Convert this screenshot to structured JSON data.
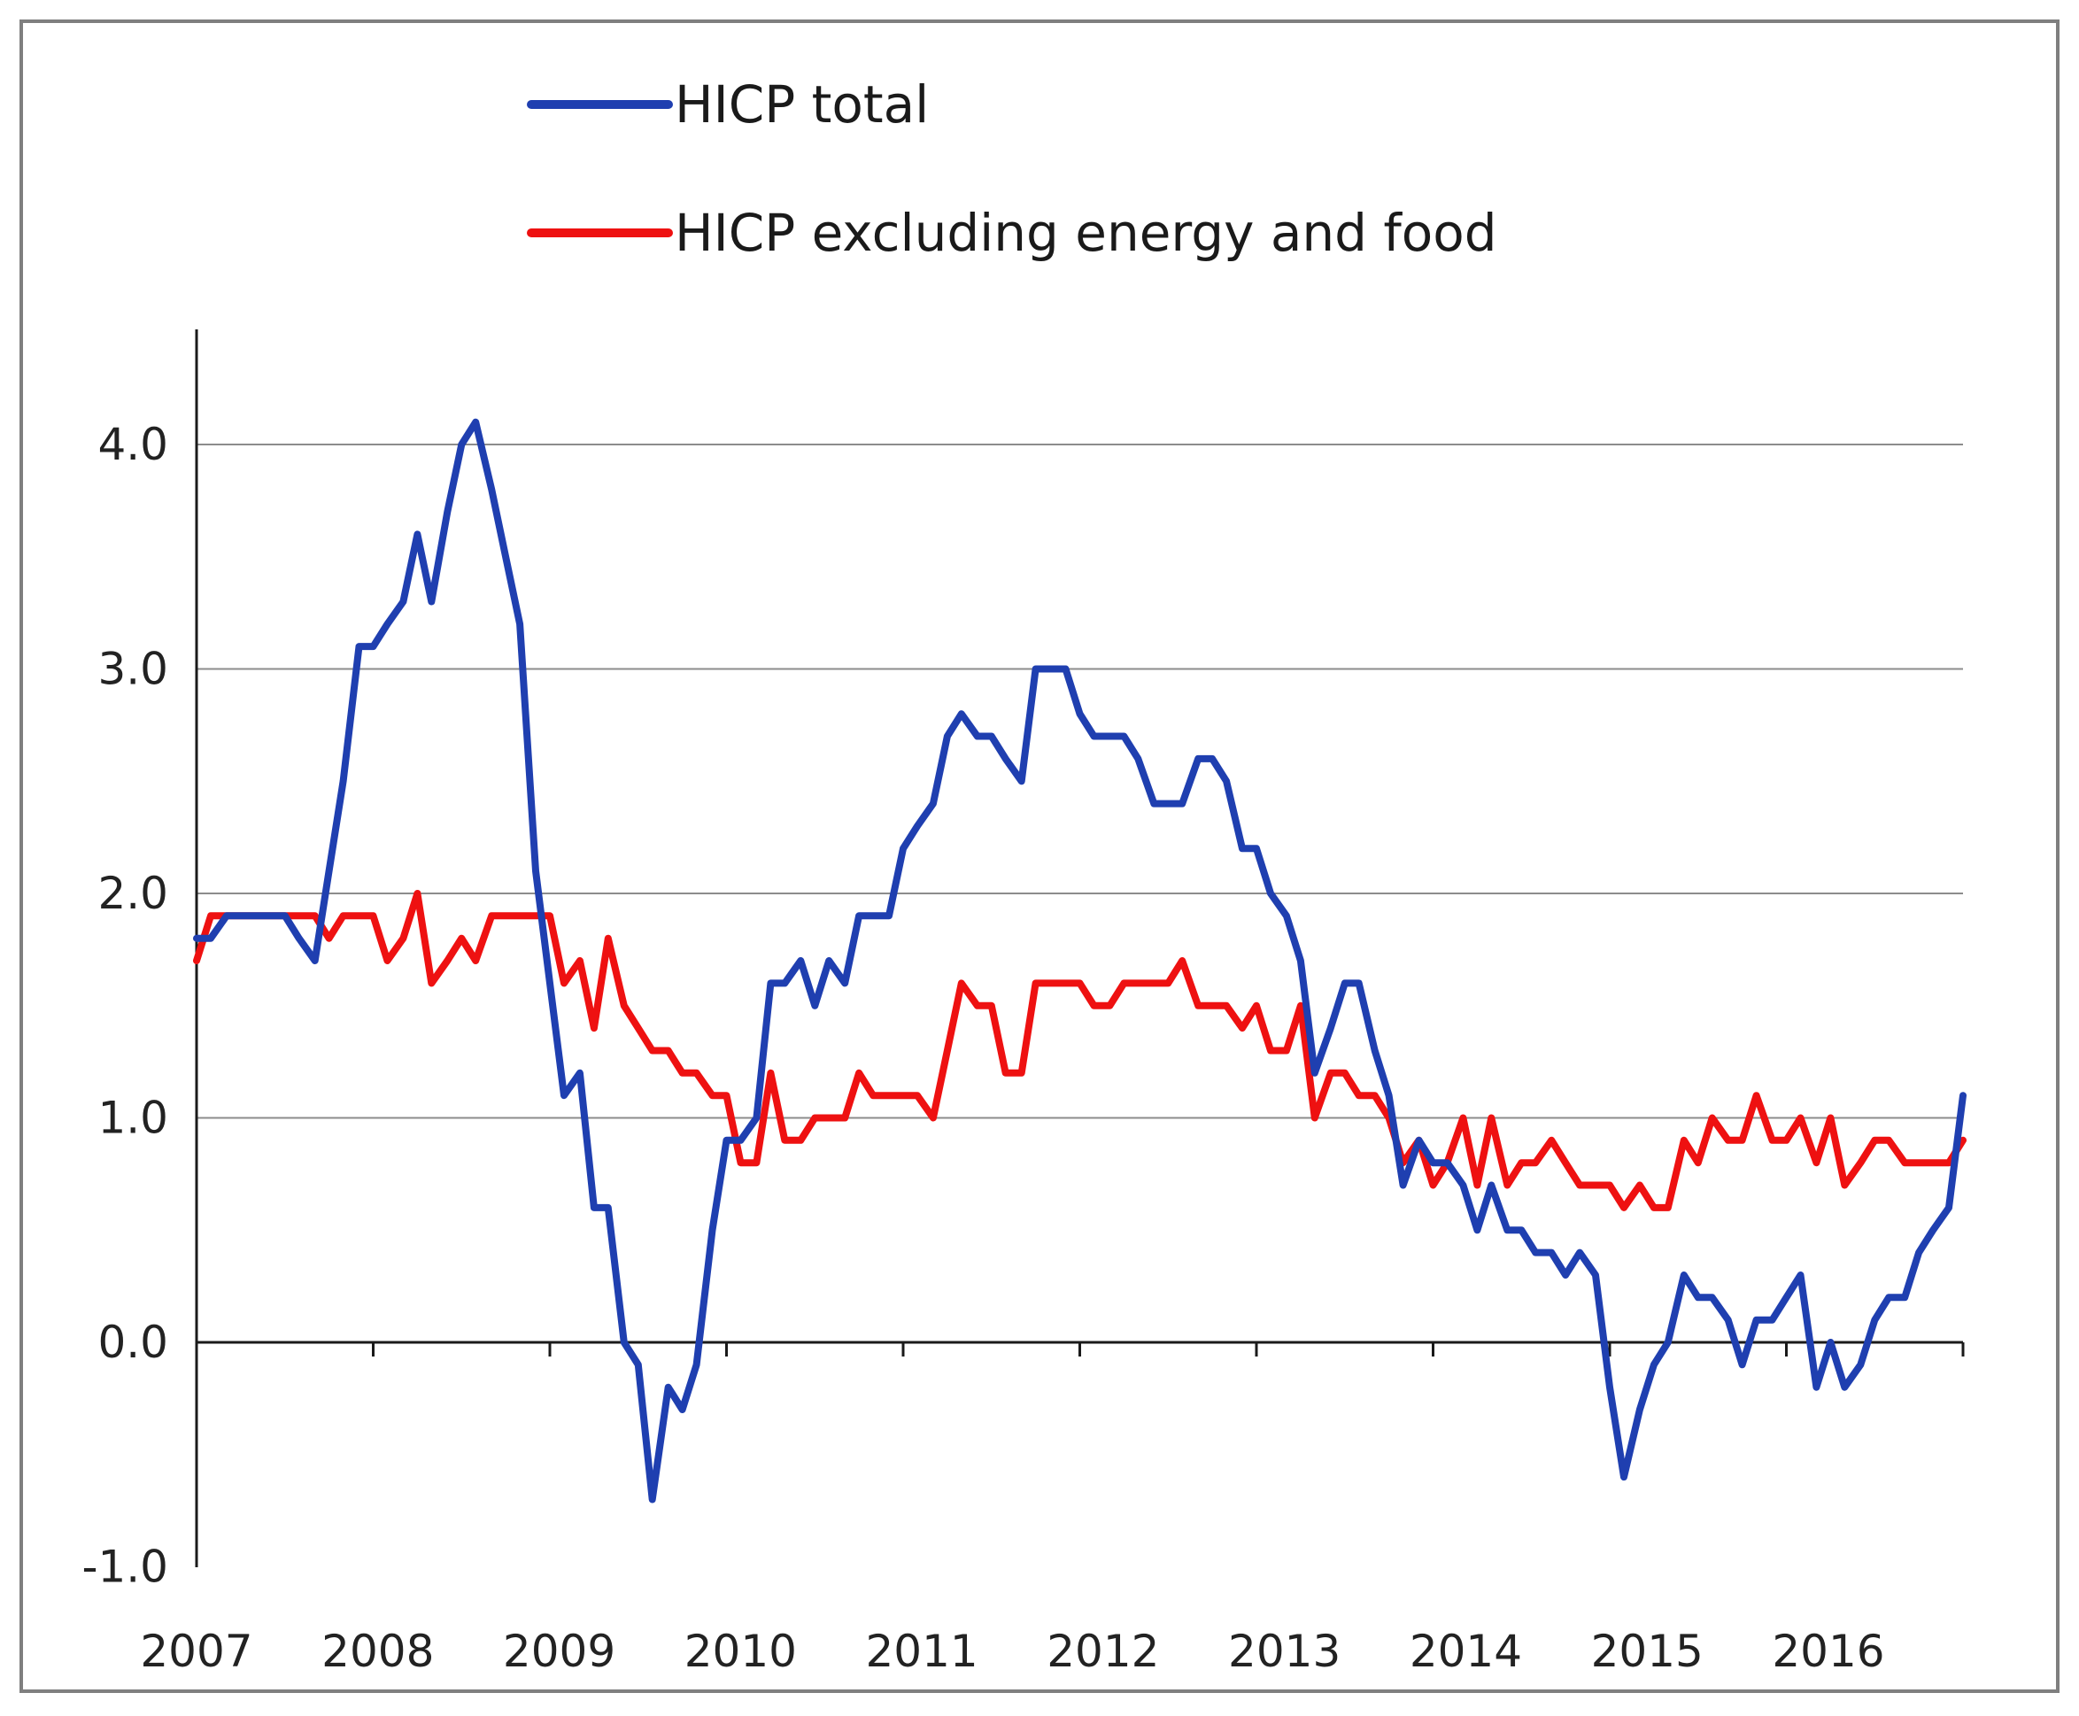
{
  "chart_data": {
    "type": "line",
    "title": "",
    "xlabel": "",
    "ylabel": "",
    "ylim": [
      -1.0,
      4.3
    ],
    "yticks": [
      -1.0,
      0.0,
      1.0,
      2.0,
      3.0,
      4.0
    ],
    "ytick_labels": [
      "-1.0",
      "0.0",
      "1.0",
      "2.0",
      "3.0",
      "4.0"
    ],
    "x_range": [
      2007,
      2017
    ],
    "xtick_labels": [
      "2007",
      "2008",
      "2009",
      "2010",
      "2011",
      "2012",
      "2013",
      "2014",
      "2015",
      "2016"
    ],
    "grid": "horizontal",
    "legend_position": "top",
    "series": [
      {
        "name": "HICP total",
        "color": "#1f3fb0",
        "points": [
          [
            2007.0,
            1.8
          ],
          [
            2007.08,
            1.8
          ],
          [
            2007.17,
            1.9
          ],
          [
            2007.25,
            1.9
          ],
          [
            2007.33,
            1.9
          ],
          [
            2007.42,
            1.9
          ],
          [
            2007.5,
            1.9
          ],
          [
            2007.58,
            1.8
          ],
          [
            2007.67,
            1.7
          ],
          [
            2007.75,
            2.1
          ],
          [
            2007.83,
            2.5
          ],
          [
            2007.92,
            3.1
          ],
          [
            2008.0,
            3.1
          ],
          [
            2008.08,
            3.2
          ],
          [
            2008.17,
            3.3
          ],
          [
            2008.25,
            3.6
          ],
          [
            2008.33,
            3.3
          ],
          [
            2008.42,
            3.7
          ],
          [
            2008.5,
            4.0
          ],
          [
            2008.58,
            4.1
          ],
          [
            2008.67,
            3.8
          ],
          [
            2008.75,
            3.5
          ],
          [
            2008.83,
            3.2
          ],
          [
            2008.92,
            2.1
          ],
          [
            2009.0,
            1.6
          ],
          [
            2009.08,
            1.1
          ],
          [
            2009.17,
            1.2
          ],
          [
            2009.25,
            0.6
          ],
          [
            2009.33,
            0.6
          ],
          [
            2009.42,
            0.0
          ],
          [
            2009.5,
            -0.1
          ],
          [
            2009.58,
            -0.7
          ],
          [
            2009.67,
            -0.2
          ],
          [
            2009.75,
            -0.3
          ],
          [
            2009.83,
            -0.1
          ],
          [
            2009.92,
            0.5
          ],
          [
            2010.0,
            0.9
          ],
          [
            2010.08,
            0.9
          ],
          [
            2010.17,
            1.0
          ],
          [
            2010.25,
            1.6
          ],
          [
            2010.33,
            1.6
          ],
          [
            2010.42,
            1.7
          ],
          [
            2010.5,
            1.5
          ],
          [
            2010.58,
            1.7
          ],
          [
            2010.67,
            1.6
          ],
          [
            2010.75,
            1.9
          ],
          [
            2010.83,
            1.9
          ],
          [
            2010.92,
            1.9
          ],
          [
            2011.0,
            2.2
          ],
          [
            2011.08,
            2.3
          ],
          [
            2011.17,
            2.4
          ],
          [
            2011.25,
            2.7
          ],
          [
            2011.33,
            2.8
          ],
          [
            2011.42,
            2.7
          ],
          [
            2011.5,
            2.7
          ],
          [
            2011.58,
            2.6
          ],
          [
            2011.67,
            2.5
          ],
          [
            2011.75,
            3.0
          ],
          [
            2011.83,
            3.0
          ],
          [
            2011.92,
            3.0
          ],
          [
            2012.0,
            2.8
          ],
          [
            2012.08,
            2.7
          ],
          [
            2012.17,
            2.7
          ],
          [
            2012.25,
            2.7
          ],
          [
            2012.33,
            2.6
          ],
          [
            2012.42,
            2.4
          ],
          [
            2012.5,
            2.4
          ],
          [
            2012.58,
            2.4
          ],
          [
            2012.67,
            2.6
          ],
          [
            2012.75,
            2.6
          ],
          [
            2012.83,
            2.5
          ],
          [
            2012.92,
            2.2
          ],
          [
            2013.0,
            2.2
          ],
          [
            2013.08,
            2.0
          ],
          [
            2013.17,
            1.9
          ],
          [
            2013.25,
            1.7
          ],
          [
            2013.33,
            1.2
          ],
          [
            2013.42,
            1.4
          ],
          [
            2013.5,
            1.6
          ],
          [
            2013.58,
            1.6
          ],
          [
            2013.67,
            1.3
          ],
          [
            2013.75,
            1.1
          ],
          [
            2013.83,
            0.7
          ],
          [
            2013.92,
            0.9
          ],
          [
            2014.0,
            0.8
          ],
          [
            2014.08,
            0.8
          ],
          [
            2014.17,
            0.7
          ],
          [
            2014.25,
            0.5
          ],
          [
            2014.33,
            0.7
          ],
          [
            2014.42,
            0.5
          ],
          [
            2014.5,
            0.5
          ],
          [
            2014.58,
            0.4
          ],
          [
            2014.67,
            0.4
          ],
          [
            2014.75,
            0.3
          ],
          [
            2014.83,
            0.4
          ],
          [
            2014.92,
            0.3
          ],
          [
            2015.0,
            -0.2
          ],
          [
            2015.08,
            -0.6
          ],
          [
            2015.17,
            -0.3
          ],
          [
            2015.25,
            -0.1
          ],
          [
            2015.33,
            0.0
          ],
          [
            2015.42,
            0.3
          ],
          [
            2015.5,
            0.2
          ],
          [
            2015.58,
            0.2
          ],
          [
            2015.67,
            0.1
          ],
          [
            2015.75,
            -0.1
          ],
          [
            2015.83,
            0.1
          ],
          [
            2015.92,
            0.1
          ],
          [
            2016.0,
            0.2
          ],
          [
            2016.08,
            0.3
          ],
          [
            2016.17,
            -0.2
          ],
          [
            2016.25,
            0.0
          ],
          [
            2016.33,
            -0.2
          ],
          [
            2016.42,
            -0.1
          ],
          [
            2016.5,
            0.1
          ],
          [
            2016.58,
            0.2
          ],
          [
            2016.67,
            0.2
          ],
          [
            2016.75,
            0.4
          ],
          [
            2016.83,
            0.5
          ],
          [
            2016.92,
            0.6
          ],
          [
            2017.0,
            1.1
          ]
        ]
      },
      {
        "name": "HICP excluding energy and food",
        "color": "#ee1111",
        "points": [
          [
            2007.0,
            1.7
          ],
          [
            2007.08,
            1.9
          ],
          [
            2007.17,
            1.9
          ],
          [
            2007.25,
            1.9
          ],
          [
            2007.33,
            1.9
          ],
          [
            2007.42,
            1.9
          ],
          [
            2007.5,
            1.9
          ],
          [
            2007.58,
            1.9
          ],
          [
            2007.67,
            1.9
          ],
          [
            2007.75,
            1.8
          ],
          [
            2007.83,
            1.9
          ],
          [
            2007.92,
            1.9
          ],
          [
            2008.0,
            1.9
          ],
          [
            2008.08,
            1.7
          ],
          [
            2008.17,
            1.8
          ],
          [
            2008.25,
            2.0
          ],
          [
            2008.33,
            1.6
          ],
          [
            2008.42,
            1.7
          ],
          [
            2008.5,
            1.8
          ],
          [
            2008.58,
            1.7
          ],
          [
            2008.67,
            1.9
          ],
          [
            2008.75,
            1.9
          ],
          [
            2008.83,
            1.9
          ],
          [
            2008.92,
            1.9
          ],
          [
            2009.0,
            1.9
          ],
          [
            2009.08,
            1.6
          ],
          [
            2009.17,
            1.7
          ],
          [
            2009.25,
            1.4
          ],
          [
            2009.33,
            1.8
          ],
          [
            2009.42,
            1.5
          ],
          [
            2009.5,
            1.4
          ],
          [
            2009.58,
            1.3
          ],
          [
            2009.67,
            1.3
          ],
          [
            2009.75,
            1.2
          ],
          [
            2009.83,
            1.2
          ],
          [
            2009.92,
            1.1
          ],
          [
            2010.0,
            1.1
          ],
          [
            2010.08,
            0.8
          ],
          [
            2010.17,
            0.8
          ],
          [
            2010.25,
            1.2
          ],
          [
            2010.33,
            0.9
          ],
          [
            2010.42,
            0.9
          ],
          [
            2010.5,
            1.0
          ],
          [
            2010.58,
            1.0
          ],
          [
            2010.67,
            1.0
          ],
          [
            2010.75,
            1.2
          ],
          [
            2010.83,
            1.1
          ],
          [
            2010.92,
            1.1
          ],
          [
            2011.0,
            1.1
          ],
          [
            2011.08,
            1.1
          ],
          [
            2011.17,
            1.0
          ],
          [
            2011.25,
            1.3
          ],
          [
            2011.33,
            1.6
          ],
          [
            2011.42,
            1.5
          ],
          [
            2011.5,
            1.5
          ],
          [
            2011.58,
            1.2
          ],
          [
            2011.67,
            1.2
          ],
          [
            2011.75,
            1.6
          ],
          [
            2011.83,
            1.6
          ],
          [
            2011.92,
            1.6
          ],
          [
            2012.0,
            1.6
          ],
          [
            2012.08,
            1.5
          ],
          [
            2012.17,
            1.5
          ],
          [
            2012.25,
            1.6
          ],
          [
            2012.33,
            1.6
          ],
          [
            2012.42,
            1.6
          ],
          [
            2012.5,
            1.6
          ],
          [
            2012.58,
            1.7
          ],
          [
            2012.67,
            1.5
          ],
          [
            2012.75,
            1.5
          ],
          [
            2012.83,
            1.5
          ],
          [
            2012.92,
            1.4
          ],
          [
            2013.0,
            1.5
          ],
          [
            2013.08,
            1.3
          ],
          [
            2013.17,
            1.3
          ],
          [
            2013.25,
            1.5
          ],
          [
            2013.33,
            1.0
          ],
          [
            2013.42,
            1.2
          ],
          [
            2013.5,
            1.2
          ],
          [
            2013.58,
            1.1
          ],
          [
            2013.67,
            1.1
          ],
          [
            2013.75,
            1.0
          ],
          [
            2013.83,
            0.8
          ],
          [
            2013.92,
            0.9
          ],
          [
            2014.0,
            0.7
          ],
          [
            2014.08,
            0.8
          ],
          [
            2014.17,
            1.0
          ],
          [
            2014.25,
            0.7
          ],
          [
            2014.33,
            1.0
          ],
          [
            2014.42,
            0.7
          ],
          [
            2014.5,
            0.8
          ],
          [
            2014.58,
            0.8
          ],
          [
            2014.67,
            0.9
          ],
          [
            2014.75,
            0.8
          ],
          [
            2014.83,
            0.7
          ],
          [
            2014.92,
            0.7
          ],
          [
            2015.0,
            0.7
          ],
          [
            2015.08,
            0.6
          ],
          [
            2015.17,
            0.7
          ],
          [
            2015.25,
            0.6
          ],
          [
            2015.33,
            0.6
          ],
          [
            2015.42,
            0.9
          ],
          [
            2015.5,
            0.8
          ],
          [
            2015.58,
            1.0
          ],
          [
            2015.67,
            0.9
          ],
          [
            2015.75,
            0.9
          ],
          [
            2015.83,
            1.1
          ],
          [
            2015.92,
            0.9
          ],
          [
            2016.0,
            0.9
          ],
          [
            2016.08,
            1.0
          ],
          [
            2016.17,
            0.8
          ],
          [
            2016.25,
            1.0
          ],
          [
            2016.33,
            0.7
          ],
          [
            2016.42,
            0.8
          ],
          [
            2016.5,
            0.9
          ],
          [
            2016.58,
            0.9
          ],
          [
            2016.67,
            0.8
          ],
          [
            2016.75,
            0.8
          ],
          [
            2016.83,
            0.8
          ],
          [
            2016.92,
            0.8
          ],
          [
            2017.0,
            0.9
          ]
        ]
      }
    ]
  }
}
